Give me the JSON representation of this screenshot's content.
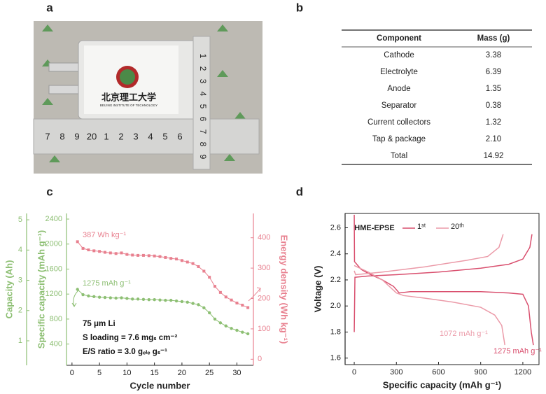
{
  "panel_labels": [
    "a",
    "b",
    "c",
    "d"
  ],
  "photo": {
    "label": "北京理工大学",
    "sublabel": "BEIJING INSTITUTE OF TECHNOLOGY",
    "ruler_h": [
      "7",
      "8",
      "9",
      "20",
      "1",
      "2",
      "3",
      "4",
      "5",
      "6"
    ],
    "ruler_v": [
      "1",
      "2",
      "3",
      "4",
      "5",
      "6",
      "7",
      "8",
      "9"
    ]
  },
  "table": {
    "header": [
      "Component",
      "Mass (g)"
    ],
    "rows": [
      [
        "Cathode",
        "3.38"
      ],
      [
        "Electrolyte",
        "6.39"
      ],
      [
        "Anode",
        "1.35"
      ],
      [
        "Separator",
        "0.38"
      ],
      [
        "Current collectors",
        "1.32"
      ],
      [
        "Tap & package",
        "2.10"
      ],
      [
        "Total",
        "14.92"
      ]
    ]
  },
  "chart_data": [
    {
      "type": "line",
      "color_axes": true,
      "x_label": "Cycle number",
      "y_label": "Specific capacity (mAh g⁻¹)",
      "y2_label": "Energy density (Wh kg⁻¹)",
      "y3_label": "Capacity (Ah)",
      "x": [
        1,
        2,
        3,
        4,
        5,
        6,
        7,
        8,
        9,
        10,
        11,
        12,
        13,
        14,
        15,
        16,
        17,
        18,
        19,
        20,
        21,
        22,
        23,
        24,
        25,
        26,
        27,
        28,
        29,
        30,
        31,
        32
      ],
      "xlim": [
        -1,
        33
      ],
      "xticks": [
        0,
        5,
        10,
        15,
        20,
        25,
        30
      ],
      "ylim": [
        60,
        2490
      ],
      "yticks": [
        400,
        800,
        1200,
        1600,
        2000,
        2400
      ],
      "y2lim": [
        -20,
        480
      ],
      "y2ticks": [
        0,
        100,
        200,
        300,
        400
      ],
      "y3lim": [
        0.19,
        5.21
      ],
      "y3ticks": [
        1,
        2,
        3,
        4,
        5
      ],
      "series": [
        {
          "color": "#8dbf73",
          "marker": "circle",
          "values": [
            1275,
            1190,
            1170,
            1160,
            1150,
            1145,
            1140,
            1135,
            1140,
            1130,
            1120,
            1120,
            1115,
            1110,
            1110,
            1105,
            1100,
            1100,
            1090,
            1080,
            1070,
            1050,
            1030,
            980,
            900,
            800,
            740,
            690,
            650,
            620,
            590,
            565
          ]
        },
        {
          "color": "#e8808f",
          "marker": "square",
          "axis": "y2",
          "values": [
            387,
            365,
            360,
            357,
            355,
            352,
            350,
            348,
            350,
            345,
            343,
            342,
            342,
            341,
            340,
            338,
            335,
            332,
            330,
            325,
            320,
            315,
            305,
            290,
            270,
            240,
            220,
            205,
            195,
            185,
            178,
            170
          ]
        }
      ],
      "annotations": [
        "387 Wh kg⁻¹",
        "1275 mAh g⁻¹",
        "75 μm Li",
        "S loading = 7.6 mgₛ cm⁻²",
        "E/S ratio = 3.0 gₑₗₑ gₛ⁻¹"
      ]
    },
    {
      "type": "line",
      "legend_title": "HME-EPSE",
      "x_label": "Specific capacity (mAh g⁻¹)",
      "y_label": "Voltage (V)",
      "xlim": [
        -65,
        1315
      ],
      "xticks": [
        0,
        300,
        600,
        900,
        1200
      ],
      "ylim": [
        1.55,
        2.71
      ],
      "yticks": [
        1.6,
        1.8,
        {
          "value": 2,
          "label": "2.0"
        },
        2.2,
        2.4,
        2.6
      ],
      "box": true,
      "series": [
        {
          "name": "1ˢᵗ",
          "color": "#d94f6e",
          "x": [
            0,
            2,
            50,
            100,
            200,
            280,
            320,
            400,
            600,
            900,
            1100,
            1200,
            1240,
            1260,
            1275,
            null,
            0,
            5,
            100,
            300,
            600,
            900,
            1100,
            1200,
            1250,
            1265
          ],
          "values": [
            2.7,
            2.34,
            2.28,
            2.25,
            2.2,
            2.15,
            2.1,
            2.11,
            2.11,
            2.11,
            2.1,
            2.09,
            2.0,
            1.8,
            1.7,
            null,
            1.8,
            2.22,
            2.23,
            2.24,
            2.26,
            2.29,
            2.32,
            2.36,
            2.45,
            2.55
          ]
        },
        {
          "name": "20ᵗʰ",
          "color": "#eb9aa8",
          "x": [
            0,
            100,
            200,
            300,
            350,
            500,
            700,
            900,
            1000,
            1050,
            1072,
            null,
            0,
            10,
            200,
            500,
            800,
            950,
            1030,
            1060
          ],
          "values": [
            2.31,
            2.26,
            2.2,
            2.1,
            2.08,
            2.06,
            2.03,
            1.99,
            1.93,
            1.85,
            1.7,
            null,
            2.27,
            2.24,
            2.26,
            2.3,
            2.35,
            2.38,
            2.45,
            2.55
          ]
        }
      ],
      "annotations": [
        "1072 mAh g⁻¹",
        "1275 mAh g⁻¹"
      ]
    }
  ]
}
